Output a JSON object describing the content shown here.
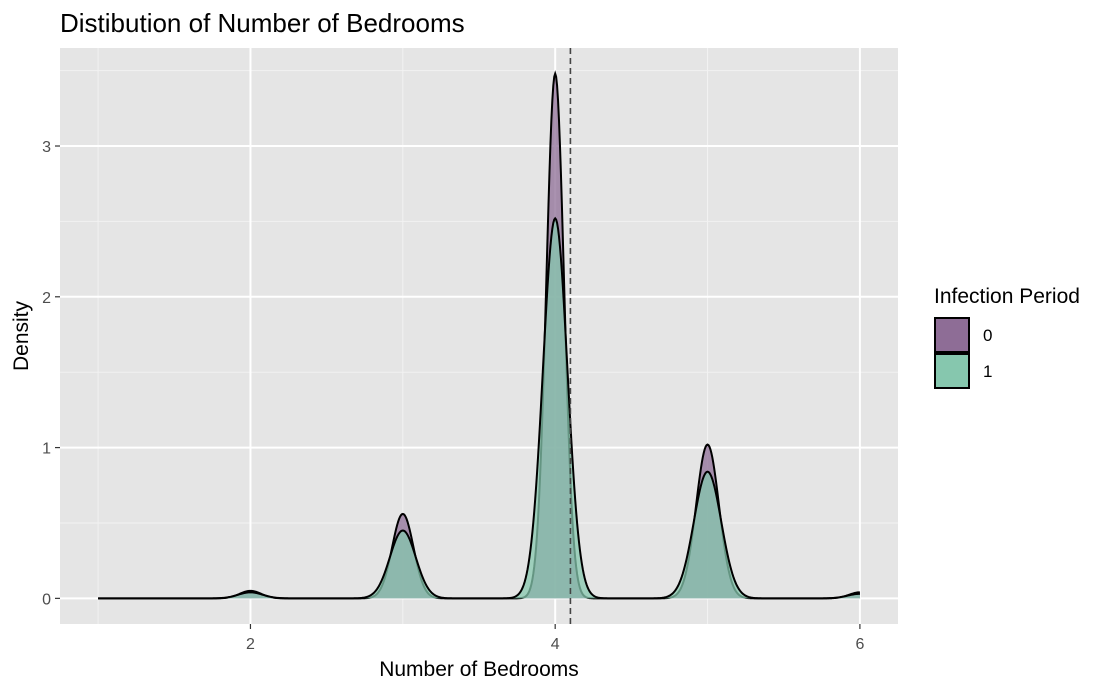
{
  "chart_data": {
    "type": "area",
    "title": "Distibution of Number of Bedrooms",
    "xlabel": "Number of Bedrooms",
    "ylabel": "Density",
    "xlim": [
      0.75,
      6.25
    ],
    "ylim": [
      -0.17,
      3.65
    ],
    "x_ticks": [
      2,
      4,
      6
    ],
    "x_minor_ticks": [
      1,
      3,
      5
    ],
    "y_ticks": [
      0,
      1,
      2,
      3
    ],
    "y_minor_ticks": [
      0.5,
      1.5,
      2.5,
      3.5
    ],
    "background": "#e5e5e5",
    "grid": true,
    "legend": {
      "title": "Infection Period",
      "position": "right"
    },
    "reference_line": {
      "x": 4.1,
      "style": "dashed"
    },
    "series": [
      {
        "name": "0",
        "color": "#8e6d96",
        "x_range": [
          1,
          6
        ],
        "peaks": [
          {
            "x": 2,
            "height": 0.05,
            "sd": 0.07
          },
          {
            "x": 3,
            "height": 0.56,
            "sd": 0.07
          },
          {
            "x": 4,
            "height": 3.48,
            "sd": 0.058
          },
          {
            "x": 5,
            "height": 1.02,
            "sd": 0.075
          },
          {
            "x": 6,
            "height": 0.04,
            "sd": 0.07
          }
        ]
      },
      {
        "name": "1",
        "color": "#86c7ae",
        "x_range": [
          1,
          6
        ],
        "peaks": [
          {
            "x": 2,
            "height": 0.04,
            "sd": 0.08
          },
          {
            "x": 3,
            "height": 0.45,
            "sd": 0.085
          },
          {
            "x": 4,
            "height": 2.52,
            "sd": 0.08
          },
          {
            "x": 5,
            "height": 0.84,
            "sd": 0.09
          },
          {
            "x": 6,
            "height": 0.03,
            "sd": 0.08
          }
        ]
      }
    ]
  }
}
